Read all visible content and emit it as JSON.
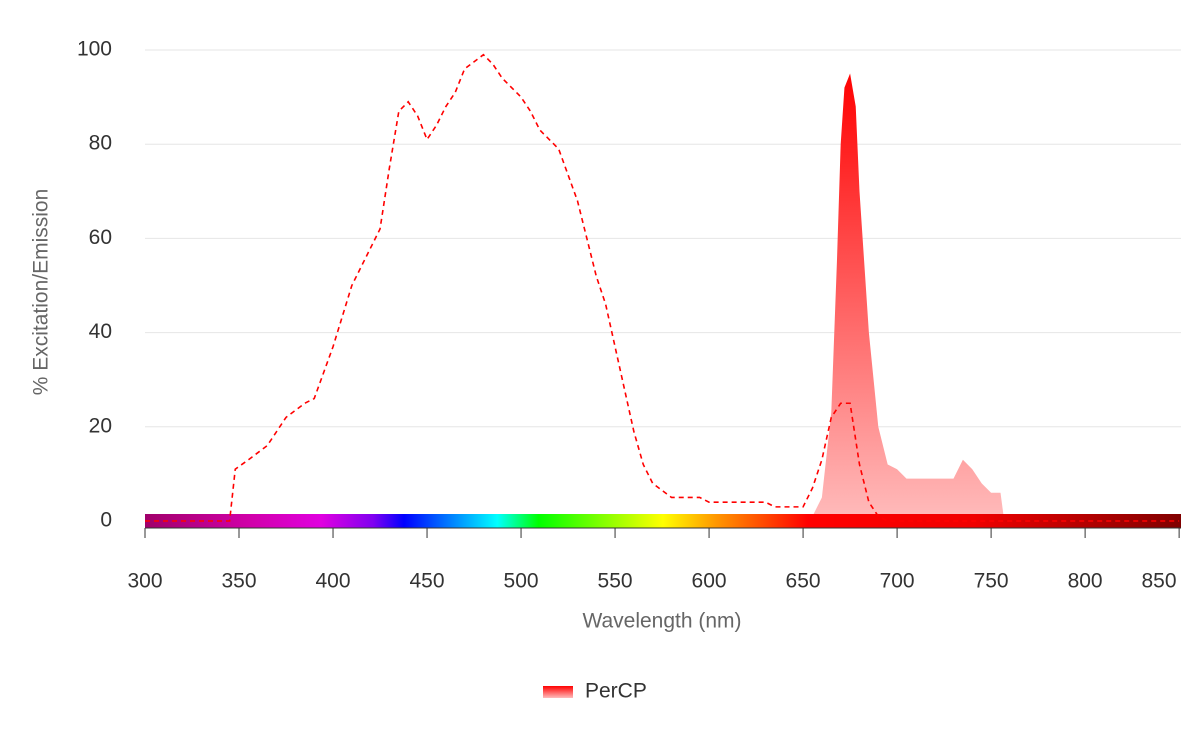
{
  "chart_data": {
    "type": "spectrum",
    "xlabel": "Wavelength (nm)",
    "ylabel": "% Excitation/Emission",
    "xlim": [
      300,
      851
    ],
    "ylim": [
      0,
      100
    ],
    "xticks": [
      300,
      350,
      400,
      450,
      500,
      550,
      600,
      650,
      700,
      750,
      800,
      850
    ],
    "yticks": [
      0,
      20,
      40,
      60,
      80,
      100
    ],
    "grid": true,
    "legend": {
      "label": "PerCP",
      "position": "bottom"
    },
    "series": [
      {
        "style": "dashed-line",
        "color": "#ff0000",
        "x": [
          300,
          345,
          348,
          355,
          365,
          375,
          385,
          390,
          400,
          410,
          420,
          425,
          430,
          435,
          440,
          445,
          450,
          455,
          460,
          465,
          470,
          480,
          485,
          490,
          500,
          505,
          510,
          520,
          530,
          540,
          545,
          550,
          555,
          560,
          565,
          570,
          580,
          590,
          595,
          600,
          620,
          630,
          635,
          650,
          655,
          660,
          665,
          670,
          675,
          680,
          685,
          690,
          695,
          850
        ],
        "values": [
          0,
          0,
          11,
          13,
          16,
          22,
          25,
          26,
          37,
          50,
          58,
          62,
          75,
          87,
          89,
          86,
          81,
          84,
          88,
          91,
          96,
          99,
          97,
          94,
          90,
          87,
          83,
          79,
          68,
          52,
          46,
          37,
          28,
          19,
          12,
          8,
          5,
          5,
          5,
          4,
          4,
          4,
          3,
          3,
          7,
          13,
          22,
          25,
          25,
          12,
          4,
          1,
          0,
          0
        ]
      },
      {
        "style": "area",
        "color": "#ff0000",
        "x": [
          645,
          650,
          655,
          660,
          665,
          668,
          670,
          672,
          675,
          678,
          680,
          685,
          690,
          695,
          700,
          705,
          710,
          720,
          730,
          735,
          740,
          745,
          750,
          755,
          757
        ],
        "values": [
          0,
          0,
          1,
          5,
          23,
          55,
          80,
          92,
          95,
          88,
          70,
          40,
          20,
          12,
          11,
          9,
          9,
          9,
          9,
          13,
          11,
          8,
          6,
          6,
          0
        ]
      }
    ]
  }
}
